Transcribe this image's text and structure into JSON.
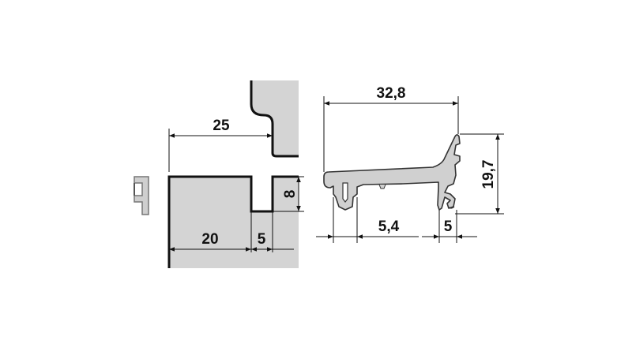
{
  "colors": {
    "section_fill": "#d4d4d4",
    "profile_fill": "#d0d0d0",
    "line": "#111111"
  },
  "left_drawing": {
    "dim_top": "25",
    "dim_bottom_left": "20",
    "dim_groove_width": "5",
    "dim_groove_depth": "8"
  },
  "right_drawing": {
    "dim_width": "32,8",
    "dim_height": "19,7",
    "dim_leg": "5,4",
    "dim_lip": "5"
  }
}
